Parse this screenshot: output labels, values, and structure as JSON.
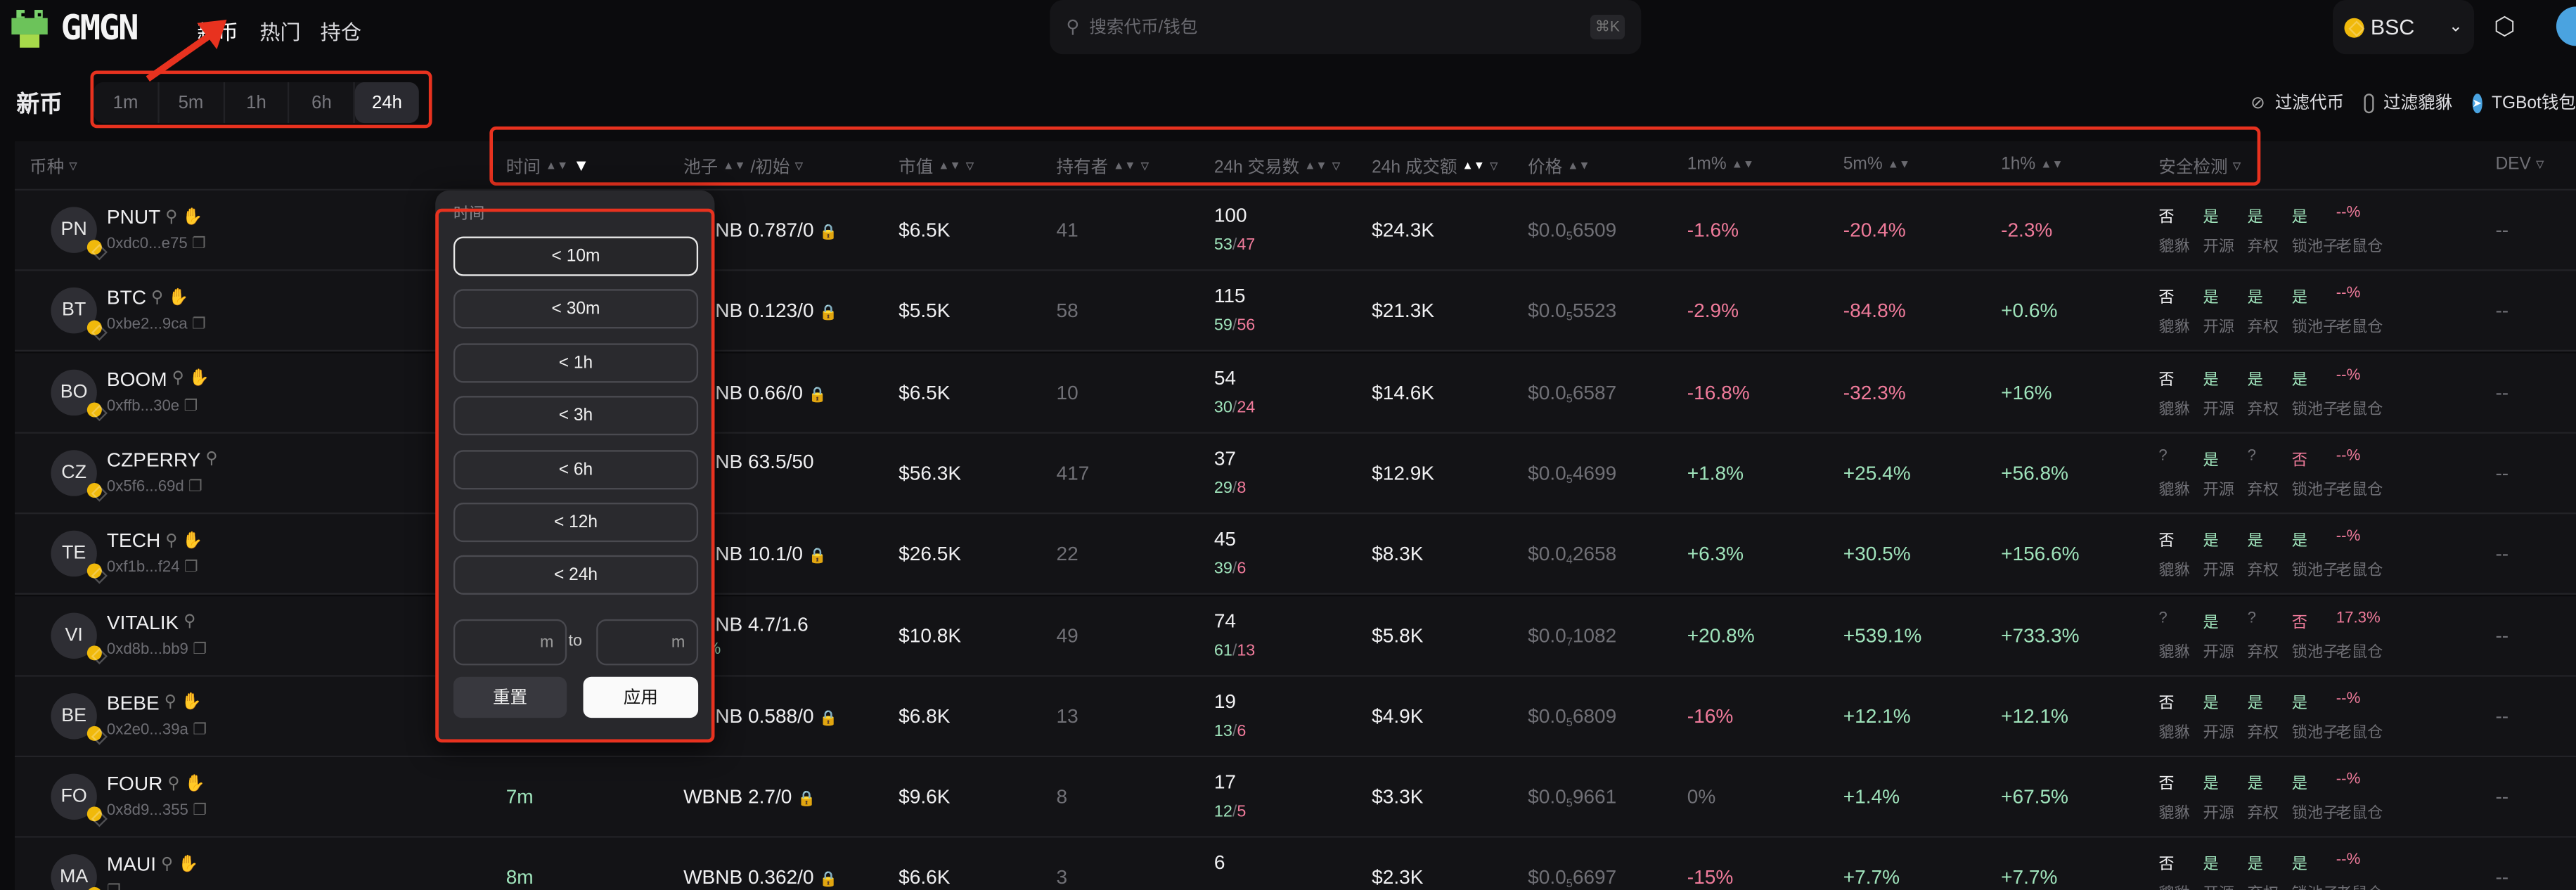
{
  "header": {
    "logo_text": "GMGN",
    "nav": [
      {
        "label": "新币",
        "active": true
      },
      {
        "label": "热门"
      },
      {
        "label": "持仓"
      }
    ],
    "search_placeholder": "搜索代币/钱包",
    "search_shortcut": "⌘K",
    "chain": "BSC"
  },
  "page": {
    "title": "新币",
    "timeframes": [
      "1m",
      "5m",
      "1h",
      "6h",
      "24h"
    ],
    "active_timeframe": "24h",
    "filter_tokens_label": "过滤代币",
    "filter_honeypot_label": "过滤貔貅",
    "filter_honeypot_checked": false,
    "tgbot_label": "TGBot钱包"
  },
  "columns": [
    "币种",
    "时间",
    "池子",
    "/初始",
    "市值",
    "持有者",
    "24h 交易数",
    "24h 成交额",
    "价格",
    "1m%",
    "5m%",
    "1h%",
    "安全检测",
    "DEV"
  ],
  "security_labels": [
    "貔貅",
    "开源",
    "弃权",
    "锁池子",
    "老鼠仓"
  ],
  "rows": [
    {
      "avatar": "PN",
      "symbol": "PNUT",
      "hand": true,
      "address": "0xdc0...e75",
      "time": "",
      "pool": "WBNB 0.787/0",
      "pool_sub": "",
      "mcap": "$6.5K",
      "holders": "41",
      "txns": "100",
      "buys": "53",
      "sells": "47",
      "volume": "$24.3K",
      "price_pre": "$0.0",
      "price_sub": "5",
      "price_post": "6509",
      "m1": "-1.6%",
      "m5": "-20.4%",
      "h1": "-2.3%",
      "sec": [
        "否",
        "是",
        "是",
        "是",
        "--%"
      ],
      "dev": "--"
    },
    {
      "avatar": "BT",
      "symbol": "BTC",
      "hand": true,
      "address": "0xbe2...9ca",
      "time": "",
      "pool": "WBNB 0.123/0",
      "pool_sub": "",
      "mcap": "$5.5K",
      "holders": "58",
      "txns": "115",
      "buys": "59",
      "sells": "56",
      "volume": "$21.3K",
      "price_pre": "$0.0",
      "price_sub": "5",
      "price_post": "5523",
      "m1": "-2.9%",
      "m5": "-84.8%",
      "h1": "+0.6%",
      "sec": [
        "否",
        "是",
        "是",
        "是",
        "--%"
      ],
      "dev": "--"
    },
    {
      "avatar": "BO",
      "symbol": "BOOM",
      "hand": true,
      "address": "0xffb...30e",
      "time": "",
      "pool": "WBNB 0.66/0",
      "pool_sub": "",
      "mcap": "$6.5K",
      "holders": "10",
      "txns": "54",
      "buys": "30",
      "sells": "24",
      "volume": "$14.6K",
      "price_pre": "$0.0",
      "price_sub": "5",
      "price_post": "6587",
      "m1": "-16.8%",
      "m5": "-32.3%",
      "h1": "+16%",
      "sec": [
        "否",
        "是",
        "是",
        "是",
        "--%"
      ],
      "dev": "--"
    },
    {
      "avatar": "CZ",
      "symbol": "CZPERRY",
      "hand": false,
      "address": "0x5f6...69d",
      "time": "",
      "pool": "WBNB 63.5/50",
      "pool_sub": ".2%",
      "mcap": "$56.3K",
      "holders": "417",
      "txns": "37",
      "buys": "29",
      "sells": "8",
      "volume": "$12.9K",
      "price_pre": "$0.0",
      "price_sub": "5",
      "price_post": "4699",
      "m1": "+1.8%",
      "m5": "+25.4%",
      "h1": "+56.8%",
      "sec": [
        "?",
        "是",
        "?",
        "否",
        "--%"
      ],
      "dev": "--"
    },
    {
      "avatar": "TE",
      "symbol": "TECH",
      "hand": true,
      "address": "0xf1b...f24",
      "time": "",
      "pool": "WBNB 10.1/0",
      "pool_sub": "",
      "mcap": "$26.5K",
      "holders": "22",
      "txns": "45",
      "buys": "39",
      "sells": "6",
      "volume": "$8.3K",
      "price_pre": "$0.0",
      "price_sub": "4",
      "price_post": "2658",
      "m1": "+6.3%",
      "m5": "+30.5%",
      "h1": "+156.6%",
      "sec": [
        "否",
        "是",
        "是",
        "是",
        "--%"
      ],
      "dev": "--"
    },
    {
      "avatar": "VI",
      "symbol": "VITALIK",
      "hand": false,
      "address": "0xd8b...bb9",
      "time": "",
      "pool": "WBNB 4.7/1.6",
      "pool_sub": "7.3%",
      "mcap": "$10.8K",
      "holders": "49",
      "txns": "74",
      "buys": "61",
      "sells": "13",
      "volume": "$5.8K",
      "price_pre": "$0.0",
      "price_sub": "7",
      "price_post": "1082",
      "m1": "+20.8%",
      "m5": "+539.1%",
      "h1": "+733.3%",
      "sec": [
        "?",
        "是",
        "?",
        "否",
        "17.3%"
      ],
      "dev": "--"
    },
    {
      "avatar": "BE",
      "symbol": "BEBE",
      "hand": true,
      "address": "0x2e0...39a",
      "time": "",
      "pool": "WBNB 0.588/0",
      "pool_sub": "",
      "mcap": "$6.8K",
      "holders": "13",
      "txns": "19",
      "buys": "13",
      "sells": "6",
      "volume": "$4.9K",
      "price_pre": "$0.0",
      "price_sub": "5",
      "price_post": "6809",
      "m1": "-16%",
      "m5": "+12.1%",
      "h1": "+12.1%",
      "sec": [
        "否",
        "是",
        "是",
        "是",
        "--%"
      ],
      "dev": "--"
    },
    {
      "avatar": "FO",
      "symbol": "FOUR",
      "hand": true,
      "address": "0x8d9...355",
      "time": "7m",
      "pool": "WBNB 2.7/0",
      "pool_sub": "",
      "mcap": "$9.6K",
      "holders": "8",
      "txns": "17",
      "buys": "12",
      "sells": "5",
      "volume": "$3.3K",
      "price_pre": "$0.0",
      "price_sub": "5",
      "price_post": "9661",
      "m1": "0%",
      "m5": "+1.4%",
      "h1": "+67.5%",
      "sec": [
        "否",
        "是",
        "是",
        "是",
        "--%"
      ],
      "dev": "--"
    },
    {
      "avatar": "MA",
      "symbol": "MAUI",
      "hand": true,
      "address": "",
      "time": "8m",
      "pool": "WBNB 0.362/0",
      "pool_sub": "",
      "mcap": "$6.6K",
      "holders": "3",
      "txns": "6",
      "buys": "",
      "sells": "",
      "volume": "$2.3K",
      "price_pre": "$0.0",
      "price_sub": "5",
      "price_post": "6697",
      "m1": "-15%",
      "m5": "+7.7%",
      "h1": "+7.7%",
      "sec": [
        "否",
        "是",
        "是",
        "是",
        "--%"
      ],
      "dev": "--"
    }
  ],
  "time_filter": {
    "title": "时间",
    "options": [
      "< 10m",
      "< 30m",
      "< 1h",
      "< 3h",
      "< 6h",
      "< 12h",
      "< 24h"
    ],
    "selected": "< 10m",
    "min_unit": "m",
    "to_label": "to",
    "max_unit": "m",
    "reset_label": "重置",
    "apply_label": "应用"
  },
  "colors": {
    "positive": "#9fe3bb",
    "negative": "#f07b9b",
    "annotation": "#e8321f",
    "background": "#0b0b0d"
  }
}
